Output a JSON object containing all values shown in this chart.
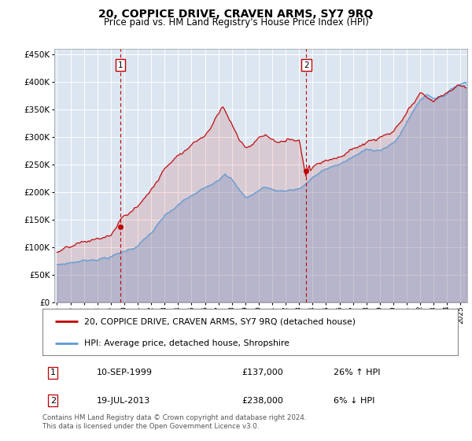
{
  "title": "20, COPPICE DRIVE, CRAVEN ARMS, SY7 9RQ",
  "subtitle": "Price paid vs. HM Land Registry's House Price Index (HPI)",
  "legend_line1": "20, COPPICE DRIVE, CRAVEN ARMS, SY7 9RQ (detached house)",
  "legend_line2": "HPI: Average price, detached house, Shropshire",
  "footnote": "Contains HM Land Registry data © Crown copyright and database right 2024.\nThis data is licensed under the Open Government Licence v3.0.",
  "sale1_label": "1",
  "sale1_date": "10-SEP-1999",
  "sale1_price": 137000,
  "sale1_hpi_txt": "26% ↑ HPI",
  "sale2_label": "2",
  "sale2_date": "19-JUL-2013",
  "sale2_price": 238000,
  "sale2_hpi_txt": "6% ↓ HPI",
  "hpi_color": "#5b9bd5",
  "price_color": "#c00000",
  "vline_color": "#c00000",
  "bg_color": "#dce6f1",
  "plot_bg": "#ffffff",
  "grid_color": "#ffffff",
  "ylim_min": 0,
  "ylim_max": 460000,
  "ytick_step": 50000,
  "sale1_x": 1999.71,
  "sale2_x": 2013.54,
  "sale1_dot_price": 137000,
  "sale2_dot_price": 238000,
  "xlim_min": 1994.8,
  "xlim_max": 2025.5,
  "xtick_start": 1995,
  "xtick_end": 2025
}
